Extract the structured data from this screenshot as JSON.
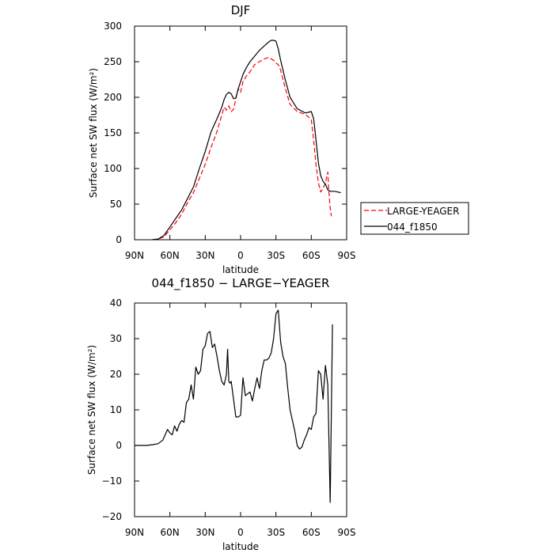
{
  "chart_data": [
    {
      "type": "line",
      "title": "DJF",
      "xlabel": "latitude",
      "ylabel": "Surface net SW flux (W/m²)",
      "xlim": [
        -90,
        90
      ],
      "ylim": [
        0,
        300
      ],
      "x_ticks": [
        -90,
        -60,
        -30,
        0,
        30,
        60,
        90
      ],
      "x_tick_labels": [
        "90N",
        "60N",
        "30N",
        "0",
        "30S",
        "60S",
        "90S"
      ],
      "y_ticks": [
        0,
        50,
        100,
        150,
        200,
        250,
        300
      ],
      "y_tick_labels": [
        "0",
        "50",
        "100",
        "150",
        "200",
        "250",
        "300"
      ],
      "grid": false,
      "legend_position": "outside-right",
      "series": [
        {
          "name": "LARGE-YEAGER",
          "color": "#ff0000",
          "dash": "dashed",
          "x": [
            -75,
            -70,
            -65,
            -60,
            -55,
            -50,
            -45,
            -40,
            -35,
            -30,
            -25,
            -20,
            -16,
            -14,
            -12,
            -10,
            -8,
            -6,
            -4,
            -2,
            0,
            2,
            5,
            8,
            12,
            16,
            20,
            24,
            28,
            30,
            32,
            34,
            38,
            42,
            48,
            55,
            60,
            62,
            64,
            66,
            68,
            70,
            72,
            74,
            75,
            76,
            77
          ],
          "y": [
            0,
            1,
            4,
            14,
            24,
            36,
            52,
            66,
            86,
            106,
            130,
            152,
            175,
            186,
            182,
            188,
            180,
            183,
            198,
            212,
            207,
            222,
            230,
            236,
            246,
            250,
            254,
            256,
            252,
            248,
            246,
            238,
            212,
            190,
            180,
            176,
            169,
            140,
            105,
            80,
            67,
            72,
            80,
            95,
            65,
            45,
            33
          ]
        },
        {
          "name": "044_f1850",
          "color": "#000000",
          "dash": "solid",
          "x": [
            -75,
            -70,
            -65,
            -60,
            -55,
            -50,
            -45,
            -40,
            -35,
            -30,
            -25,
            -20,
            -16,
            -14,
            -12,
            -10,
            -8,
            -6,
            -4,
            -2,
            0,
            2,
            5,
            8,
            12,
            16,
            20,
            24,
            26,
            28,
            30,
            32,
            34,
            38,
            42,
            48,
            55,
            60,
            62,
            64,
            66,
            68,
            70,
            72,
            74,
            76,
            80,
            85
          ],
          "y": [
            0,
            1,
            6,
            18,
            30,
            42,
            58,
            74,
            100,
            124,
            152,
            170,
            186,
            197,
            204,
            207,
            205,
            198,
            199,
            212,
            222,
            232,
            242,
            250,
            258,
            266,
            272,
            278,
            280,
            280,
            279,
            268,
            252,
            224,
            200,
            184,
            178,
            180,
            170,
            140,
            108,
            90,
            82,
            78,
            70,
            68,
            68,
            66
          ]
        }
      ]
    },
    {
      "type": "line",
      "title": "044_f1850 − LARGE−YEAGER",
      "xlabel": "latitude",
      "ylabel": "Surface net SW flux (W/m²)",
      "xlim": [
        -90,
        90
      ],
      "ylim": [
        -20,
        40
      ],
      "x_ticks": [
        -90,
        -60,
        -30,
        0,
        30,
        60,
        90
      ],
      "x_tick_labels": [
        "90N",
        "60N",
        "30N",
        "0",
        "30S",
        "60S",
        "90S"
      ],
      "y_ticks": [
        -20,
        -10,
        0,
        10,
        20,
        30,
        40
      ],
      "y_tick_labels": [
        "−20",
        "−10",
        "0",
        "10",
        "20",
        "30",
        "40"
      ],
      "grid": false,
      "series": [
        {
          "color": "#000000",
          "dash": "solid",
          "x": [
            -90,
            -80,
            -75,
            -70,
            -66,
            -64,
            -62,
            -60,
            -58,
            -56,
            -54,
            -52,
            -50,
            -48,
            -46,
            -44,
            -42,
            -40,
            -38,
            -36,
            -34,
            -32,
            -30,
            -28,
            -26,
            -24,
            -22,
            -20,
            -18,
            -16,
            -14,
            -12,
            -11,
            -10,
            -9,
            -8,
            -6,
            -4,
            -2,
            0,
            2,
            4,
            6,
            8,
            10,
            12,
            14,
            16,
            18,
            20,
            22,
            24,
            26,
            28,
            30,
            32,
            34,
            36,
            38,
            40,
            42,
            44,
            46,
            48,
            50,
            52,
            54,
            56,
            58,
            60,
            62,
            64,
            66,
            68,
            70,
            72,
            74,
            76,
            78
          ],
          "y": [
            0,
            0,
            0.2,
            0.5,
            1.5,
            3,
            4.5,
            3.5,
            3,
            5.5,
            4,
            6,
            7,
            6.5,
            12,
            13,
            17,
            13,
            22,
            20,
            21,
            27,
            28,
            31.5,
            32,
            27.5,
            28.5,
            25,
            21,
            18,
            17,
            20,
            27,
            18,
            17.5,
            18,
            13,
            8,
            8,
            8.5,
            19,
            14,
            14.5,
            15,
            12.5,
            16,
            19,
            16,
            21,
            24,
            24,
            24.5,
            26,
            30,
            37,
            38,
            29,
            25,
            23,
            16,
            10,
            7,
            4,
            0,
            -1,
            -0.5,
            1.5,
            3,
            5,
            4.5,
            8,
            9,
            21,
            20,
            13,
            22.5,
            17,
            -16,
            34
          ]
        }
      ]
    }
  ]
}
